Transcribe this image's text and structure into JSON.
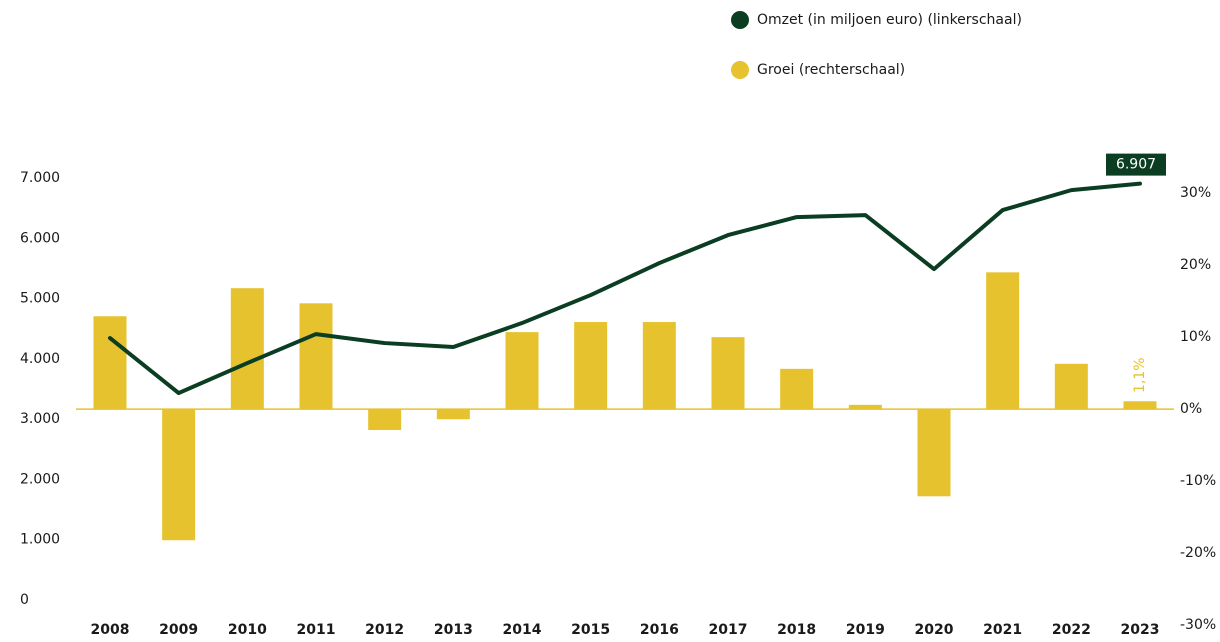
{
  "chart_data": {
    "type": "bar-line",
    "categories": [
      "2008",
      "2009",
      "2010",
      "2011",
      "2012",
      "2013",
      "2014",
      "2015",
      "2016",
      "2017",
      "2018",
      "2019",
      "2020",
      "2021",
      "2022",
      "2023"
    ],
    "series": [
      {
        "name": "Omzet (in miljoen euro) (linkerschaal)",
        "type": "line",
        "color": "#0b3d22",
        "axis": "y",
        "values": [
          4345,
          3433,
          3930,
          4411,
          4262,
          4196,
          4594,
          5058,
          5589,
          6053,
          6352,
          6385,
          5489,
          6468,
          6799,
          6907
        ],
        "value_labels": [
          null,
          null,
          null,
          null,
          null,
          null,
          null,
          null,
          null,
          null,
          null,
          null,
          null,
          null,
          null,
          "6.907"
        ]
      },
      {
        "name": "Groei (rechterschaal)",
        "type": "bar",
        "color": "#e6c22e",
        "axis": "y2",
        "values": [
          12.9,
          -18.2,
          16.8,
          14.7,
          -2.9,
          -1.4,
          10.7,
          12.1,
          12.1,
          10.0,
          5.6,
          0.6,
          -12.1,
          19.0,
          6.3,
          1.1
        ],
        "value_labels": [
          null,
          null,
          null,
          null,
          null,
          null,
          null,
          null,
          null,
          null,
          null,
          null,
          null,
          null,
          null,
          "1,1%"
        ]
      }
    ],
    "ylim": [
      0,
      7000
    ],
    "yticks": [
      0,
      {
        "value": 1000,
        "label": "1.000"
      },
      {
        "value": 2000,
        "label": "2.000"
      },
      {
        "value": 3000,
        "label": "3.000"
      },
      {
        "value": 4000,
        "label": "4.000"
      },
      {
        "value": 5000,
        "label": "5.000"
      },
      {
        "value": 6000,
        "label": "6.000"
      },
      {
        "value": 7000,
        "label": "7.000"
      }
    ],
    "y2lim": [
      -26.5,
      32.1
    ],
    "y2ticks": [
      {
        "value": -30,
        "label": "-30%"
      },
      {
        "value": -20,
        "label": "-20%"
      },
      {
        "value": -10,
        "label": "-10%"
      },
      {
        "value": 0,
        "label": "0%"
      },
      {
        "value": 10,
        "label": "10%"
      },
      {
        "value": 20,
        "label": "20%"
      },
      {
        "value": 30,
        "label": "30%"
      }
    ],
    "grid": false,
    "legend": "top-right"
  }
}
